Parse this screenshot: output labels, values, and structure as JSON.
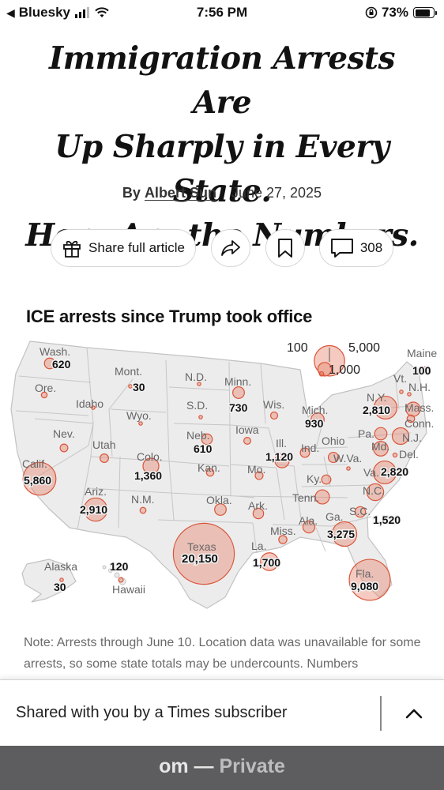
{
  "status_bar": {
    "back_app": "Bluesky",
    "time": "7:56 PM",
    "battery": "73%",
    "battery_level": 0.73
  },
  "article": {
    "headline_lines": [
      "Immigration Arrests Are",
      "Up Sharply in Every State.",
      "Here Are the Numbers."
    ],
    "by_prefix": "By",
    "author": "Albert Sun",
    "date": "June 27, 2025"
  },
  "actions": {
    "share_label": "Share full article",
    "comment_count": "308"
  },
  "chart_data": {
    "type": "map",
    "title": "ICE arrests since Trump took office",
    "size_legend": [
      {
        "label": "100",
        "value": 100
      },
      {
        "label": "1,000",
        "value": 1000
      },
      {
        "label": "5,000",
        "value": 5000
      }
    ],
    "marker_color": "#e8836c",
    "states": [
      {
        "name": "Wash.",
        "value_label": "620",
        "value": 620
      },
      {
        "name": "Ore.",
        "value": 180
      },
      {
        "name": "Calif.",
        "value_label": "5,860",
        "value": 5860
      },
      {
        "name": "Idaho",
        "value": 40
      },
      {
        "name": "Nev.",
        "value": 320
      },
      {
        "name": "Utah",
        "value": 390
      },
      {
        "name": "Ariz.",
        "value_label": "2,910",
        "value": 2910
      },
      {
        "name": "Mont.",
        "value_label": "30",
        "value": 30
      },
      {
        "name": "Wyo.",
        "value": 30
      },
      {
        "name": "Colo.",
        "value_label": "1,360",
        "value": 1360
      },
      {
        "name": "N.M.",
        "value": 190
      },
      {
        "name": "N.D.",
        "value": 40
      },
      {
        "name": "S.D.",
        "value": 60
      },
      {
        "name": "Neb.",
        "value_label": "610",
        "value": 610
      },
      {
        "name": "Kan.",
        "value": 300
      },
      {
        "name": "Okla.",
        "value": 720
      },
      {
        "name": "Texas",
        "value_label": "20,150",
        "value": 20150
      },
      {
        "name": "Minn.",
        "value_label": "730",
        "value": 730
      },
      {
        "name": "Iowa",
        "value": 260
      },
      {
        "name": "Mo.",
        "value": 330
      },
      {
        "name": "Ark.",
        "value": 600
      },
      {
        "name": "La.",
        "value_label": "1,700",
        "value": 1700
      },
      {
        "name": "Wis.",
        "value": 270
      },
      {
        "name": "Ill.",
        "value_label": "1,120",
        "value": 1120
      },
      {
        "name": "Mich.",
        "value_label": "930",
        "value": 930
      },
      {
        "name": "Ind.",
        "value": 470
      },
      {
        "name": "Ohio",
        "value": 560
      },
      {
        "name": "Ky.",
        "value": 460
      },
      {
        "name": "Tenn.",
        "value": 1080
      },
      {
        "name": "Miss.",
        "value": 360
      },
      {
        "name": "Ala.",
        "value": 780
      },
      {
        "name": "Ga.",
        "value_label": "3,275",
        "value": 3275
      },
      {
        "name": "Fla.",
        "value_label": "9,080",
        "value": 9080
      },
      {
        "name": "S.C.",
        "value": 600
      },
      {
        "name": "N.C.",
        "value_label": "1,520",
        "value": 1520
      },
      {
        "name": "Va.",
        "value_label": "2,820",
        "value": 2820
      },
      {
        "name": "W.Va.",
        "value": 60
      },
      {
        "name": "Pa.",
        "value": 820
      },
      {
        "name": "N.Y.",
        "value_label": "2,810",
        "value": 2810
      },
      {
        "name": "Md.",
        "value": 1150
      },
      {
        "name": "N.J.",
        "value": 1500
      },
      {
        "name": "Del.",
        "value": 90
      },
      {
        "name": "Conn.",
        "value": 300
      },
      {
        "name": "Mass.",
        "value": 1100
      },
      {
        "name": "Vt.",
        "value": 20
      },
      {
        "name": "N.H.",
        "value": 60
      },
      {
        "name": "Maine",
        "value_label": "100",
        "value": 100
      },
      {
        "name": "Alaska",
        "value_label": "30",
        "value": 30
      },
      {
        "name": "Hawaii",
        "value_label": "120",
        "value": 120
      }
    ]
  },
  "note": "Note: Arrests through June 10. Location data was unavailable for some arrests, so some state totals may be undercounts. Numbers",
  "share_banner": {
    "text": "Shared with you by a Times subscriber"
  },
  "browser": {
    "url_fragment": "om",
    "separator": " — ",
    "mode": "Private"
  }
}
